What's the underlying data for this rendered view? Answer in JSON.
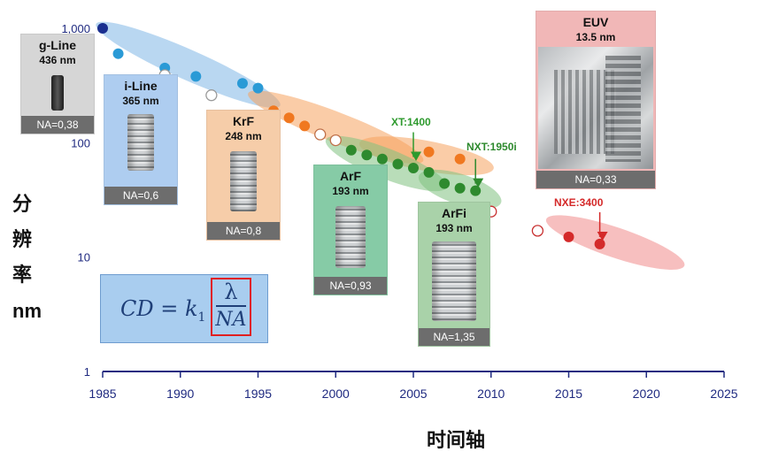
{
  "chart_data": {
    "type": "scatter",
    "xlabel": "时间轴",
    "ylabel_chars": [
      "分",
      "辨",
      "率"
    ],
    "ylabel_unit": "nm",
    "y_scale": "log",
    "xlim": [
      1985,
      2025
    ],
    "ylim": [
      1,
      1000
    ],
    "x_ticks": [
      "1985",
      "1990",
      "1995",
      "2000",
      "2005",
      "2010",
      "2015",
      "2020",
      "2025"
    ],
    "y_ticks": [
      {
        "value": 1000,
        "label": "1,000"
      },
      {
        "value": 100,
        "label": "100"
      },
      {
        "value": 10,
        "label": "10"
      },
      {
        "value": 1,
        "label": "1"
      }
    ],
    "series": [
      {
        "color": "#1a2f8f",
        "hollow": false,
        "points": [
          [
            1985,
            1000
          ]
        ]
      },
      {
        "color": "#2a9ad6",
        "hollow": false,
        "points": [
          [
            1986,
            600
          ],
          [
            1989,
            450
          ],
          [
            1991,
            380
          ],
          [
            1994,
            330
          ],
          [
            1995,
            300
          ]
        ]
      },
      {
        "color": "#9a9a9a",
        "hollow": true,
        "points": [
          [
            1989,
            390
          ],
          [
            1992,
            260
          ]
        ]
      },
      {
        "color": "#f07820",
        "hollow": false,
        "points": [
          [
            1996,
            190
          ],
          [
            1997,
            165
          ],
          [
            1998,
            140
          ],
          [
            2006,
            83
          ],
          [
            2008,
            72
          ]
        ]
      },
      {
        "color": "#c0714a",
        "hollow": true,
        "points": [
          [
            1999,
            118
          ],
          [
            2000,
            105
          ]
        ]
      },
      {
        "color": "#2e8a2e",
        "hollow": false,
        "points": [
          [
            2001,
            86
          ],
          [
            2002,
            78
          ],
          [
            2003,
            72
          ],
          [
            2004,
            65
          ],
          [
            2005,
            60
          ],
          [
            2006,
            55
          ],
          [
            2007,
            44
          ],
          [
            2008,
            40
          ],
          [
            2009,
            38
          ]
        ]
      },
      {
        "color": "#c83030",
        "hollow": true,
        "points": [
          [
            2010,
            25
          ],
          [
            2013,
            17
          ]
        ]
      },
      {
        "color": "#d42a2a",
        "hollow": false,
        "points": [
          [
            2015,
            15
          ],
          [
            2017,
            13
          ]
        ]
      }
    ],
    "ellipses": [
      {
        "color": "#7fb6e6",
        "x": [
          1985.2,
          1995.8
        ],
        "y": [
          1000,
          230
        ]
      },
      {
        "color": "#f5a35e",
        "x": [
          1995.0,
          2005.0
        ],
        "y": [
          250,
          75
        ]
      },
      {
        "color": "#f5a35e",
        "x": [
          2002.2,
          2009.5
        ],
        "y": [
          95,
          62
        ]
      },
      {
        "color": "#7fc17f",
        "x": [
          2000.0,
          2006.5
        ],
        "y": [
          98,
          44
        ]
      },
      {
        "color": "#7fc17f",
        "x": [
          2006.0,
          2010.0
        ],
        "y": [
          48,
          32
        ]
      },
      {
        "color": "#f08a8a",
        "x": [
          2014.2,
          2021.8
        ],
        "y": [
          20,
          9
        ]
      }
    ],
    "annotations": [
      {
        "text": "XT:1400",
        "color": "#2e9a2e",
        "x": 2005.0,
        "y": 65
      },
      {
        "text": "NXT:1950i",
        "color": "#2e8a2e",
        "x": 2009.0,
        "y": 38
      },
      {
        "text": "NXE:3400",
        "color": "#d42a2a",
        "x": 2017.0,
        "y": 13
      }
    ]
  },
  "cards": {
    "g_line": {
      "title": "g-Line",
      "wavelength": "436 nm",
      "na": "NA=0,38",
      "color": "#d6d6d6"
    },
    "i_line": {
      "title": "i-Line",
      "wavelength": "365 nm",
      "na": "NA=0,6",
      "color": "#aecdf0"
    },
    "krf": {
      "title": "KrF",
      "wavelength": "248 nm",
      "na": "NA=0,8",
      "color": "#f6cda9"
    },
    "arf": {
      "title": "ArF",
      "wavelength": "193 nm",
      "na": "NA=0,93",
      "color": "#86cba6"
    },
    "arfi": {
      "title": "ArFi",
      "wavelength": "193 nm",
      "na": "NA=1,35",
      "color": "#a9d2a9"
    },
    "euv": {
      "title": "EUV",
      "wavelength": "13.5 nm",
      "na": "NA=0,33",
      "color": "#f1b7b7"
    }
  },
  "formula": {
    "lhs": "CD = k",
    "subscript": "1",
    "numerator": "λ",
    "denominator": "NA"
  }
}
